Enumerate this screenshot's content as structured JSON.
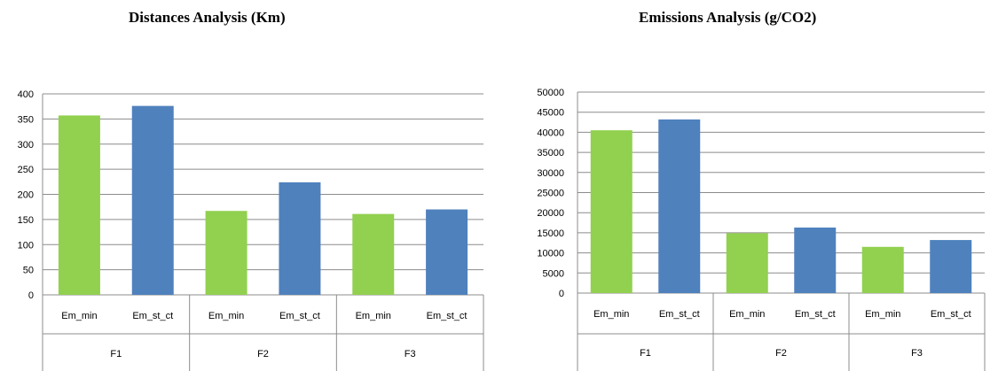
{
  "colors": {
    "green": "#92D050",
    "blue": "#4F81BD",
    "grid": "#8c8c8c",
    "axis": "#8c8c8c"
  },
  "chart_data": [
    {
      "type": "bar",
      "title": "Distances Analysis (Km)",
      "categories": [
        "Em_min",
        "Em_st_ct",
        "Em_min",
        "Em_st_ct",
        "Em_min",
        "Em_st_ct"
      ],
      "groups": [
        "F1",
        "F2",
        "F3"
      ],
      "values": [
        357,
        376,
        167,
        224,
        161,
        170
      ],
      "bar_colors": [
        "green",
        "blue",
        "green",
        "blue",
        "green",
        "blue"
      ],
      "ylim": [
        0,
        400
      ],
      "yticks": [
        0,
        50,
        100,
        150,
        200,
        250,
        300,
        350,
        400
      ],
      "grid": true,
      "xlabel": "",
      "ylabel": ""
    },
    {
      "type": "bar",
      "title": "Emissions Analysis (g/CO2)",
      "categories": [
        "Em_min",
        "Em_st_ct",
        "Em_min",
        "Em_st_ct",
        "Em_min",
        "Em_st_ct"
      ],
      "groups": [
        "F1",
        "F2",
        "F3"
      ],
      "values": [
        40500,
        43200,
        14900,
        16300,
        11500,
        13200
      ],
      "bar_colors": [
        "green",
        "blue",
        "green",
        "blue",
        "green",
        "blue"
      ],
      "ylim": [
        0,
        50000
      ],
      "yticks": [
        0,
        5000,
        10000,
        15000,
        20000,
        25000,
        30000,
        35000,
        40000,
        45000,
        50000
      ],
      "grid": true,
      "xlabel": "",
      "ylabel": ""
    }
  ]
}
